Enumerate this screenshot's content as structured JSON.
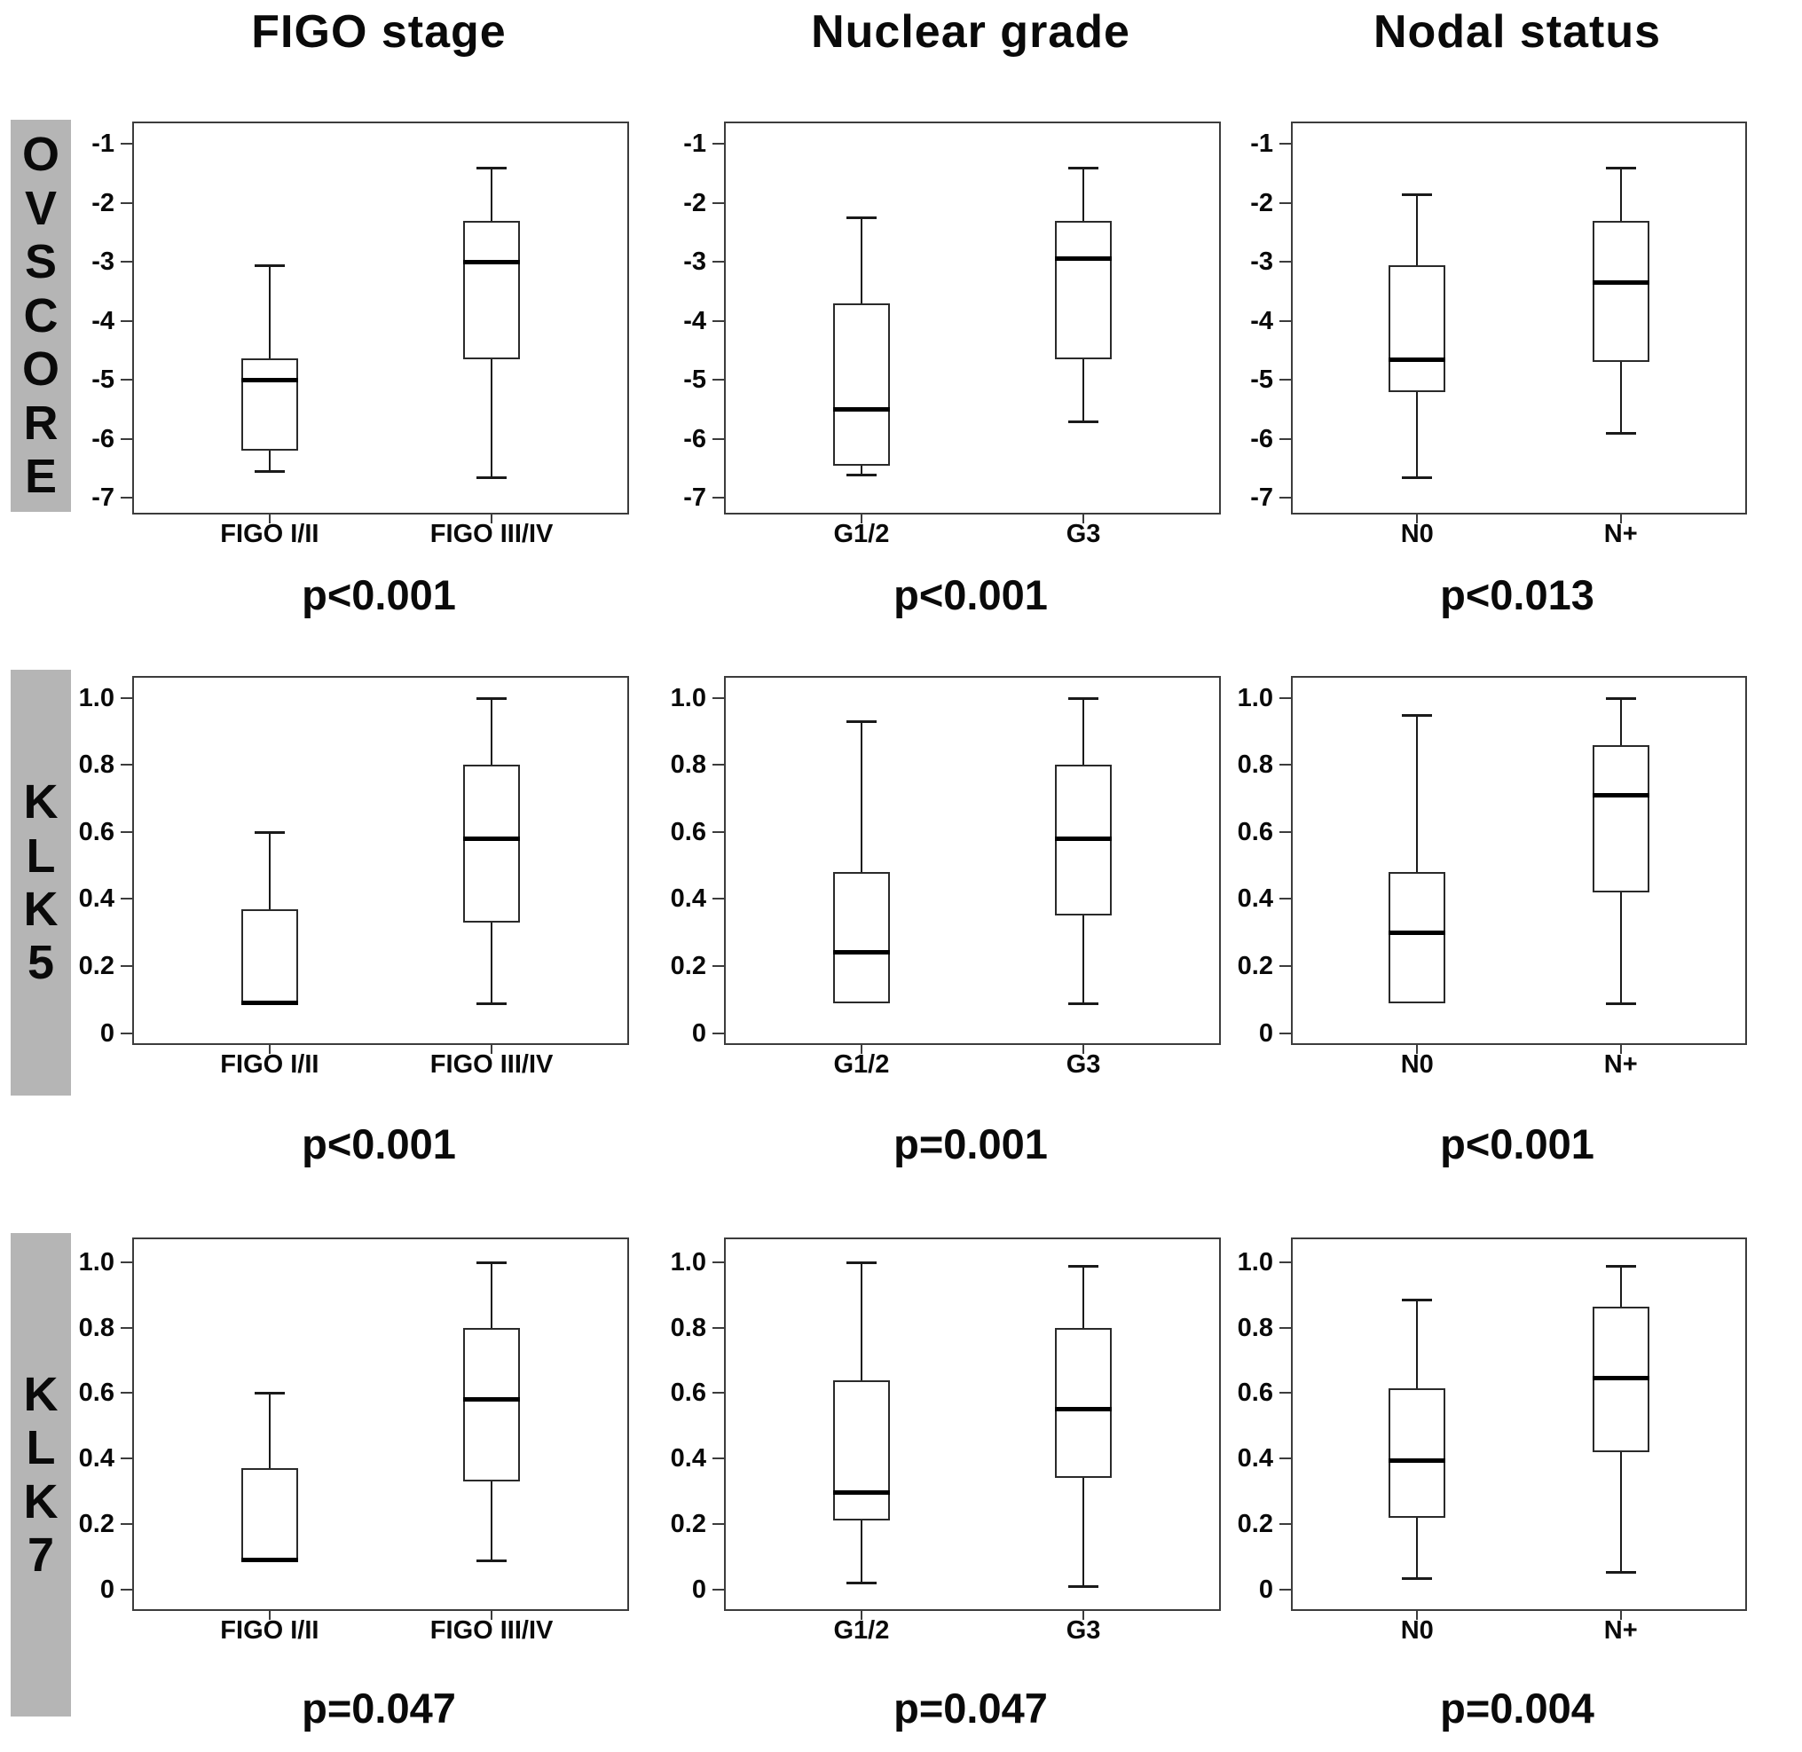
{
  "column_headers": [
    "FIGO stage",
    "Nuclear grade",
    "Nodal status"
  ],
  "row_labels": [
    {
      "id": "ovscore",
      "text": "OVSCORE",
      "letters": [
        "O",
        "V",
        "S",
        "C",
        "O",
        "R",
        "E"
      ]
    },
    {
      "id": "klk5",
      "text": "KLK5",
      "letters": [
        "K",
        "L",
        "K",
        "5"
      ]
    },
    {
      "id": "klk7",
      "text": "KLK7",
      "letters": [
        "K",
        "L",
        "K",
        "7"
      ]
    }
  ],
  "colors": {
    "row_bar_background": "#b5b5b5",
    "plot_border": "#3c3c3c",
    "box_line": "#1a1a1a",
    "text": "#0a0a0a",
    "background": "#ffffff"
  },
  "chart_data": [
    {
      "type": "box",
      "row": "OVSCORE",
      "col": "FIGO stage",
      "p_label": "p<0.001",
      "ylim": [
        -7.25,
        -0.65
      ],
      "grid": false,
      "yticks": [
        {
          "v": -1,
          "label": "-1"
        },
        {
          "v": -2,
          "label": "-2"
        },
        {
          "v": -3,
          "label": "-3"
        },
        {
          "v": -4,
          "label": "-4"
        },
        {
          "v": -5,
          "label": "-5"
        },
        {
          "v": -6,
          "label": "-6"
        },
        {
          "v": -7,
          "label": "-7"
        }
      ],
      "categories": [
        "FIGO I/II",
        "FIGO III/IV"
      ],
      "boxes": [
        {
          "lo": -6.55,
          "q1": -6.2,
          "median": -5.0,
          "q3": -4.63,
          "hi": -3.05
        },
        {
          "lo": -6.65,
          "q1": -4.65,
          "median": -3.0,
          "q3": -2.3,
          "hi": -1.4
        }
      ]
    },
    {
      "type": "box",
      "row": "OVSCORE",
      "col": "Nuclear grade",
      "p_label": "p<0.001",
      "ylim": [
        -7.25,
        -0.65
      ],
      "grid": false,
      "yticks": [
        {
          "v": -1,
          "label": "-1"
        },
        {
          "v": -2,
          "label": "-2"
        },
        {
          "v": -3,
          "label": "-3"
        },
        {
          "v": -4,
          "label": "-4"
        },
        {
          "v": -5,
          "label": "-5"
        },
        {
          "v": -6,
          "label": "-6"
        },
        {
          "v": -7,
          "label": "-7"
        }
      ],
      "categories": [
        "G1/2",
        "G3"
      ],
      "boxes": [
        {
          "lo": -6.6,
          "q1": -6.45,
          "median": -5.5,
          "q3": -3.7,
          "hi": -2.25
        },
        {
          "lo": -5.7,
          "q1": -4.65,
          "median": -2.95,
          "q3": -2.3,
          "hi": -1.4
        }
      ]
    },
    {
      "type": "box",
      "row": "OVSCORE",
      "col": "Nodal status",
      "p_label": "p<0.013",
      "ylim": [
        -7.25,
        -0.65
      ],
      "grid": false,
      "yticks": [
        {
          "v": -1,
          "label": "-1"
        },
        {
          "v": -2,
          "label": "-2"
        },
        {
          "v": -3,
          "label": "-3"
        },
        {
          "v": -4,
          "label": "-4"
        },
        {
          "v": -5,
          "label": "-5"
        },
        {
          "v": -6,
          "label": "-6"
        },
        {
          "v": -7,
          "label": "-7"
        }
      ],
      "categories": [
        "N0",
        "N+"
      ],
      "boxes": [
        {
          "lo": -6.65,
          "q1": -5.2,
          "median": -4.65,
          "q3": -3.05,
          "hi": -1.85
        },
        {
          "lo": -5.9,
          "q1": -4.7,
          "median": -3.35,
          "q3": -2.3,
          "hi": -1.4
        }
      ]
    },
    {
      "type": "box",
      "row": "KLK5",
      "col": "FIGO stage",
      "p_label": "p<0.001",
      "ylim": [
        -0.03,
        1.06
      ],
      "grid": false,
      "yticks": [
        {
          "v": 1.0,
          "label": "1.0"
        },
        {
          "v": 0.8,
          "label": "0.8"
        },
        {
          "v": 0.6,
          "label": "0.6"
        },
        {
          "v": 0.4,
          "label": "0.4"
        },
        {
          "v": 0.2,
          "label": "0.2"
        },
        {
          "v": 0,
          "label": "0"
        }
      ],
      "categories": [
        "FIGO I/II",
        "FIGO III/IV"
      ],
      "boxes": [
        {
          "lo": 0.09,
          "q1": 0.09,
          "median": 0.09,
          "q3": 0.37,
          "hi": 0.6
        },
        {
          "lo": 0.09,
          "q1": 0.33,
          "median": 0.58,
          "q3": 0.8,
          "hi": 1.0
        }
      ]
    },
    {
      "type": "box",
      "row": "KLK5",
      "col": "Nuclear grade",
      "p_label": "p=0.001",
      "ylim": [
        -0.03,
        1.06
      ],
      "grid": false,
      "yticks": [
        {
          "v": 1.0,
          "label": "1.0"
        },
        {
          "v": 0.8,
          "label": "0.8"
        },
        {
          "v": 0.6,
          "label": "0.6"
        },
        {
          "v": 0.4,
          "label": "0.4"
        },
        {
          "v": 0.2,
          "label": "0.2"
        },
        {
          "v": 0,
          "label": "0"
        }
      ],
      "categories": [
        "G1/2",
        "G3"
      ],
      "boxes": [
        {
          "lo": 0.09,
          "q1": 0.09,
          "median": 0.24,
          "q3": 0.48,
          "hi": 0.93
        },
        {
          "lo": 0.09,
          "q1": 0.35,
          "median": 0.58,
          "q3": 0.8,
          "hi": 1.0
        }
      ]
    },
    {
      "type": "box",
      "row": "KLK5",
      "col": "Nodal status",
      "p_label": "p<0.001",
      "ylim": [
        -0.03,
        1.06
      ],
      "grid": false,
      "yticks": [
        {
          "v": 1.0,
          "label": "1.0"
        },
        {
          "v": 0.8,
          "label": "0.8"
        },
        {
          "v": 0.6,
          "label": "0.6"
        },
        {
          "v": 0.4,
          "label": "0.4"
        },
        {
          "v": 0.2,
          "label": "0.2"
        },
        {
          "v": 0,
          "label": "0"
        }
      ],
      "categories": [
        "N0",
        "N+"
      ],
      "boxes": [
        {
          "lo": 0.09,
          "q1": 0.09,
          "median": 0.3,
          "q3": 0.48,
          "hi": 0.95
        },
        {
          "lo": 0.09,
          "q1": 0.42,
          "median": 0.71,
          "q3": 0.86,
          "hi": 1.0
        }
      ]
    },
    {
      "type": "box",
      "row": "KLK7",
      "col": "FIGO stage",
      "p_label": "p=0.047",
      "ylim": [
        -0.06,
        1.07
      ],
      "grid": false,
      "yticks": [
        {
          "v": 1.0,
          "label": "1.0"
        },
        {
          "v": 0.8,
          "label": "0.8"
        },
        {
          "v": 0.6,
          "label": "0.6"
        },
        {
          "v": 0.4,
          "label": "0.4"
        },
        {
          "v": 0.2,
          "label": "0.2"
        },
        {
          "v": 0,
          "label": "0"
        }
      ],
      "categories": [
        "FIGO I/II",
        "FIGO III/IV"
      ],
      "boxes": [
        {
          "lo": 0.09,
          "q1": 0.09,
          "median": 0.09,
          "q3": 0.37,
          "hi": 0.6
        },
        {
          "lo": 0.09,
          "q1": 0.33,
          "median": 0.58,
          "q3": 0.8,
          "hi": 1.0
        }
      ]
    },
    {
      "type": "box",
      "row": "KLK7",
      "col": "Nuclear grade",
      "p_label": "p=0.047",
      "ylim": [
        -0.06,
        1.07
      ],
      "grid": false,
      "yticks": [
        {
          "v": 1.0,
          "label": "1.0"
        },
        {
          "v": 0.8,
          "label": "0.8"
        },
        {
          "v": 0.6,
          "label": "0.6"
        },
        {
          "v": 0.4,
          "label": "0.4"
        },
        {
          "v": 0.2,
          "label": "0.2"
        },
        {
          "v": 0,
          "label": "0"
        }
      ],
      "categories": [
        "G1/2",
        "G3"
      ],
      "boxes": [
        {
          "lo": 0.02,
          "q1": 0.21,
          "median": 0.295,
          "q3": 0.64,
          "hi": 1.0
        },
        {
          "lo": 0.01,
          "q1": 0.34,
          "median": 0.55,
          "q3": 0.8,
          "hi": 0.99
        }
      ]
    },
    {
      "type": "box",
      "row": "KLK7",
      "col": "Nodal status",
      "p_label": "p=0.004",
      "ylim": [
        -0.06,
        1.07
      ],
      "grid": false,
      "yticks": [
        {
          "v": 1.0,
          "label": "1.0"
        },
        {
          "v": 0.8,
          "label": "0.8"
        },
        {
          "v": 0.6,
          "label": "0.6"
        },
        {
          "v": 0.4,
          "label": "0.4"
        },
        {
          "v": 0.2,
          "label": "0.2"
        },
        {
          "v": 0,
          "label": "0"
        }
      ],
      "categories": [
        "N0",
        "N+"
      ],
      "boxes": [
        {
          "lo": 0.035,
          "q1": 0.22,
          "median": 0.395,
          "q3": 0.615,
          "hi": 0.885
        },
        {
          "lo": 0.055,
          "q1": 0.42,
          "median": 0.645,
          "q3": 0.865,
          "hi": 0.99
        }
      ]
    }
  ]
}
